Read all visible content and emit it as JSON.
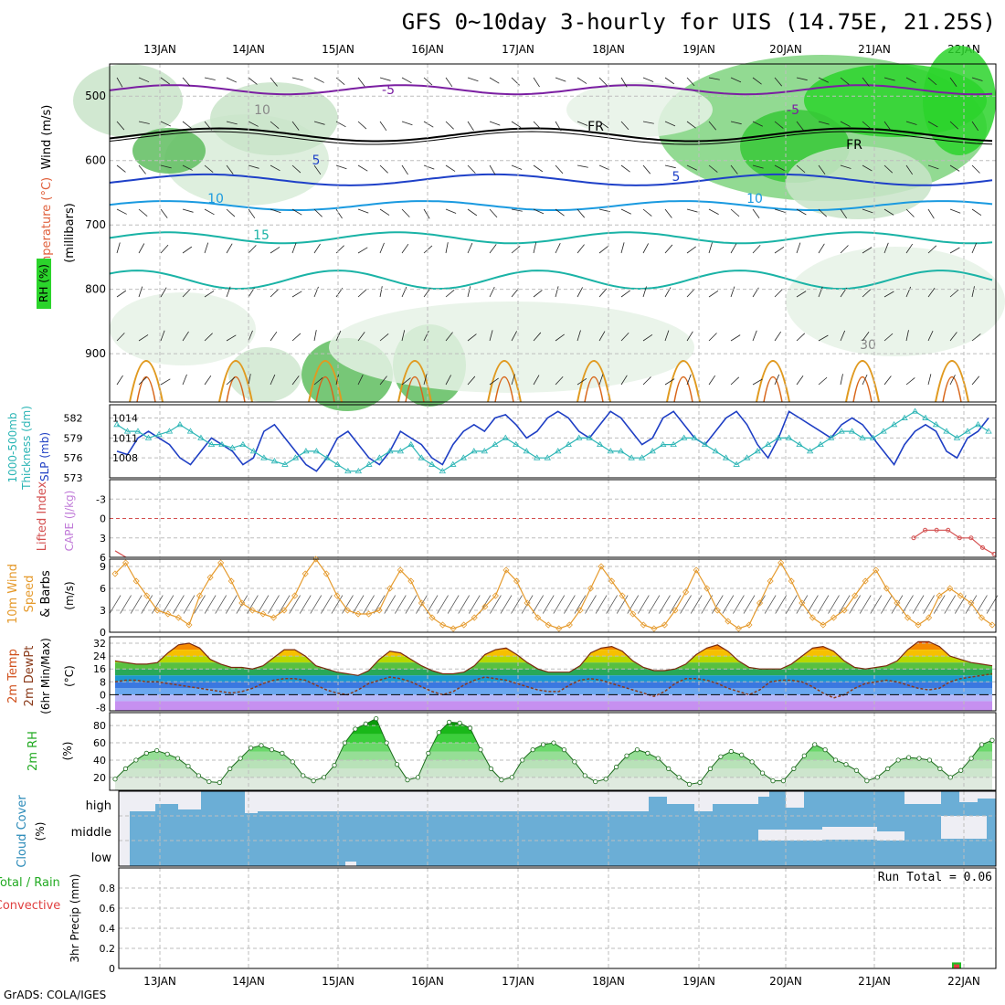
{
  "title": "GFS 0~10day 3-hourly for UIS (14.75E, 21.25S)",
  "credit": "GrADS: COLA/IGES",
  "run_total_label": "Run Total = 0.06",
  "dates": [
    "13JAN",
    "14JAN",
    "15JAN",
    "16JAN",
    "17JAN",
    "18JAN",
    "19JAN",
    "20JAN",
    "21JAN",
    "22JAN"
  ],
  "colors": {
    "temp_500_600": "#7b1fa2",
    "temp_cold": "#1e40c8",
    "temp_mid": "#1a9ae0",
    "temp_warm": "#1ab3a6",
    "slp": "#1f3fc4",
    "thickness": "#2bb5b5",
    "lifted": "#d45050",
    "wind": "#e59a2c",
    "rh": "#22bb22",
    "cloud": "#6baed6",
    "grid": "#bdbdbd"
  },
  "chart_data": [
    {
      "type": "heatmap",
      "panel": "upper-air",
      "ylabels_left": [
        "Wind (m/s)",
        "Temperature (°C)",
        "RH (%)"
      ],
      "ylabel": "(millibars)",
      "y_ticks": [
        500,
        600,
        700,
        800,
        900
      ],
      "ylim": [
        450,
        975
      ],
      "contour_labels": [
        "-5",
        "FR",
        "5",
        "10",
        "15",
        "10",
        "30"
      ],
      "x": [
        "13JAN",
        "14JAN",
        "15JAN",
        "16JAN",
        "17JAN",
        "18JAN",
        "19JAN",
        "20JAN",
        "21JAN",
        "22JAN"
      ]
    },
    {
      "type": "line",
      "panel": "slp-thickness",
      "ylabels_left": [
        "1000-500mb",
        "Thickness (dm)"
      ],
      "ylabels_right_of_left": [
        "SLP (mb)"
      ],
      "thickness_ticks": [
        582,
        579,
        576,
        573
      ],
      "slp_ticks": [
        1014,
        1011,
        1008
      ],
      "series": [
        {
          "name": "SLP (mb)",
          "values": [
            1009,
            1008.5,
            1011,
            1012,
            1011,
            1010,
            1008,
            1007,
            1009,
            1011,
            1010,
            1009,
            1007,
            1008,
            1012,
            1013,
            1011,
            1009,
            1007,
            1006,
            1008,
            1011,
            1012,
            1010,
            1008,
            1007,
            1009,
            1012,
            1011,
            1010,
            1008,
            1007,
            1010,
            1012,
            1013,
            1012,
            1014,
            1014.5,
            1013,
            1011,
            1012,
            1014,
            1015,
            1014,
            1012,
            1011,
            1013,
            1015,
            1014,
            1012,
            1010,
            1011,
            1014,
            1015,
            1013,
            1011,
            1010,
            1012,
            1014,
            1015,
            1013,
            1010,
            1008,
            1011,
            1015,
            1014,
            1013,
            1012,
            1011,
            1013,
            1014,
            1013,
            1011,
            1009,
            1007,
            1010,
            1012,
            1013,
            1012,
            1009,
            1008,
            1011,
            1012,
            1014
          ]
        },
        {
          "name": "1000-500mb Thickness (dm)",
          "values": [
            581,
            580,
            580,
            579,
            579.5,
            580,
            581,
            580,
            579,
            578,
            578,
            577.5,
            578,
            577,
            576,
            575.5,
            575,
            576,
            577,
            577,
            576,
            575,
            574,
            574,
            575,
            576,
            577,
            577,
            578,
            576,
            575,
            574,
            575,
            576,
            577,
            577,
            578,
            579,
            578,
            577,
            576,
            576,
            577,
            578,
            579,
            579,
            578,
            577,
            577,
            576,
            576,
            577,
            578,
            578,
            579,
            579,
            578,
            577,
            576,
            575,
            576,
            577,
            578,
            579,
            579,
            578,
            577,
            578,
            579,
            580,
            580,
            579,
            579,
            580,
            581,
            582,
            583,
            582,
            581,
            580,
            579,
            580,
            581,
            580
          ]
        }
      ]
    },
    {
      "type": "line",
      "panel": "cape-lifted-index",
      "ylabels_left": [
        "Lifted Index",
        "CAPE (J/kg)"
      ],
      "y_ticks": [
        -3,
        0,
        3,
        6
      ],
      "ylim": [
        -6,
        6
      ],
      "series": [
        {
          "name": "Lifted Index",
          "values_start": [
            5,
            6
          ],
          "values_end": [
            3,
            1.8,
            1.8,
            1.8,
            3,
            3,
            4.5,
            5.5
          ]
        }
      ]
    },
    {
      "type": "line",
      "panel": "wind",
      "ylabels_left": [
        "10m Wind",
        "Speed",
        "& Barbs"
      ],
      "ylabel": "(m/s)",
      "y_ticks": [
        0,
        3,
        6,
        9
      ],
      "ylim": [
        0,
        10
      ],
      "series": [
        {
          "name": "10m Wind Speed",
          "values": [
            8,
            9.5,
            7,
            5,
            3,
            2.5,
            2,
            1,
            5,
            7.5,
            9.5,
            7,
            4,
            3,
            2.5,
            2,
            3,
            5,
            8,
            10,
            8,
            5,
            3,
            2.5,
            2.5,
            3,
            6,
            8.5,
            7,
            4,
            2,
            1,
            0.5,
            1,
            2,
            3.5,
            5,
            8.5,
            7,
            4,
            2,
            1,
            0.5,
            1,
            3,
            6,
            9,
            7,
            5,
            2.5,
            1,
            0.5,
            1,
            3,
            5.5,
            8.5,
            6,
            3,
            1.5,
            0.5,
            1,
            4,
            7,
            9.5,
            7,
            4,
            2,
            1,
            2,
            3,
            5,
            7,
            8.5,
            6,
            4,
            2,
            1,
            2,
            5,
            6,
            5,
            4,
            2,
            1
          ]
        }
      ]
    },
    {
      "type": "area",
      "panel": "temperature",
      "ylabels_left": [
        "2m Temp",
        "2m DewPt",
        "(6hr Min/Max)"
      ],
      "ylabel": "(°C)",
      "y_ticks": [
        32,
        24,
        16,
        8,
        0,
        -8
      ],
      "ylim": [
        -10,
        36
      ],
      "series": [
        {
          "name": "2m Temp",
          "values": [
            21,
            20,
            19,
            19,
            20,
            26,
            31,
            32,
            29,
            22,
            19,
            17,
            17,
            16,
            18,
            23,
            28,
            28,
            24,
            18,
            16,
            14,
            13,
            12,
            15,
            22,
            27,
            26,
            22,
            18,
            15,
            13,
            13,
            14,
            18,
            25,
            28,
            29,
            25,
            20,
            16,
            14,
            14,
            14,
            18,
            26,
            29,
            30,
            27,
            21,
            17,
            15,
            15,
            16,
            19,
            25,
            29,
            31,
            27,
            21,
            17,
            16,
            16,
            16,
            19,
            24,
            29,
            30,
            27,
            21,
            17,
            16,
            17,
            18,
            21,
            28,
            33,
            33,
            30,
            24,
            22,
            20,
            19,
            18
          ]
        },
        {
          "name": "2m DewPt",
          "values": [
            8,
            9,
            9,
            8,
            8,
            7,
            6,
            5,
            4,
            3,
            2,
            1,
            2,
            4,
            7,
            9,
            10,
            10,
            9,
            6,
            3,
            1,
            0,
            3,
            7,
            9,
            11,
            10,
            8,
            5,
            2,
            0,
            2,
            6,
            9,
            11,
            10,
            9,
            7,
            5,
            3,
            2,
            2,
            6,
            9,
            10,
            9,
            7,
            5,
            3,
            1,
            -1,
            2,
            7,
            10,
            10,
            9,
            7,
            4,
            2,
            0,
            3,
            8,
            9,
            9,
            8,
            5,
            1,
            -2,
            0,
            4,
            7,
            8,
            9,
            8,
            6,
            4,
            3,
            4,
            8,
            10,
            11,
            12,
            13
          ]
        }
      ]
    },
    {
      "type": "area",
      "panel": "relative-humidity",
      "ylabels_left": [
        "2m RH"
      ],
      "ylabel": "(%)",
      "y_ticks": [
        20,
        40,
        60,
        80
      ],
      "ylim": [
        5,
        95
      ],
      "series": [
        {
          "name": "2m RH",
          "values": [
            18,
            30,
            40,
            48,
            51,
            47,
            42,
            33,
            22,
            15,
            14,
            30,
            42,
            54,
            57,
            52,
            48,
            38,
            22,
            16,
            20,
            34,
            60,
            76,
            82,
            88,
            60,
            35,
            17,
            20,
            48,
            72,
            84,
            83,
            77,
            52,
            30,
            17,
            20,
            40,
            52,
            58,
            60,
            52,
            38,
            22,
            15,
            18,
            32,
            45,
            52,
            48,
            42,
            30,
            20,
            12,
            14,
            30,
            44,
            50,
            46,
            38,
            25,
            16,
            16,
            30,
            45,
            58,
            52,
            40,
            35,
            28,
            16,
            20,
            30,
            40,
            43,
            42,
            40,
            30,
            20,
            28,
            42,
            58,
            63
          ]
        }
      ]
    },
    {
      "type": "heatmap",
      "panel": "cloud-cover",
      "ylabels_left": [
        "Cloud Cover"
      ],
      "ylabel": "(%)",
      "levels": [
        "high",
        "middle",
        "low"
      ]
    },
    {
      "type": "bar",
      "panel": "precipitation",
      "ylabels_left": [
        "Total / Rain",
        "Convective"
      ],
      "ylabel": "3hr Precip (mm)",
      "y_ticks": [
        0,
        0.2,
        0.4,
        0.6,
        0.8
      ],
      "ylim": [
        0,
        1.0
      ],
      "run_total": 0.06,
      "series": [
        {
          "name": "Total / Rain",
          "values_at": [
            {
              "x": "21JAN-18",
              "v": 0.06
            }
          ]
        },
        {
          "name": "Convective",
          "values_at": [
            {
              "x": "21JAN-18",
              "v": 0.04
            }
          ]
        }
      ]
    }
  ],
  "labels": {
    "upper_wind": "Wind (m/s)",
    "upper_temp": "Temperature (°C)",
    "upper_rh": "RH (%)",
    "upper_mb": "(millibars)",
    "thick_a": "1000-500mb",
    "thick_b": "Thickness (dm)",
    "slp": "SLP (mb)",
    "lifted": "Lifted Index",
    "cape": "CAPE (J/kg)",
    "wind_a": "10m Wind",
    "wind_b": "Speed",
    "wind_c": "& Barbs",
    "wind_u": "(m/s)",
    "temp_a": "2m Temp",
    "temp_b": "2m DewPt",
    "temp_c": "(6hr Min/Max)",
    "temp_u": "(°C)",
    "rh_a": "2m RH",
    "rh_u": "(%)",
    "cloud_a": "Cloud Cover",
    "cloud_u": "(%)",
    "cloud_high": "high",
    "cloud_mid": "middle",
    "cloud_low": "low",
    "precip_a": "Total / Rain",
    "precip_b": "Convective",
    "precip_u": "3hr Precip (mm)"
  }
}
